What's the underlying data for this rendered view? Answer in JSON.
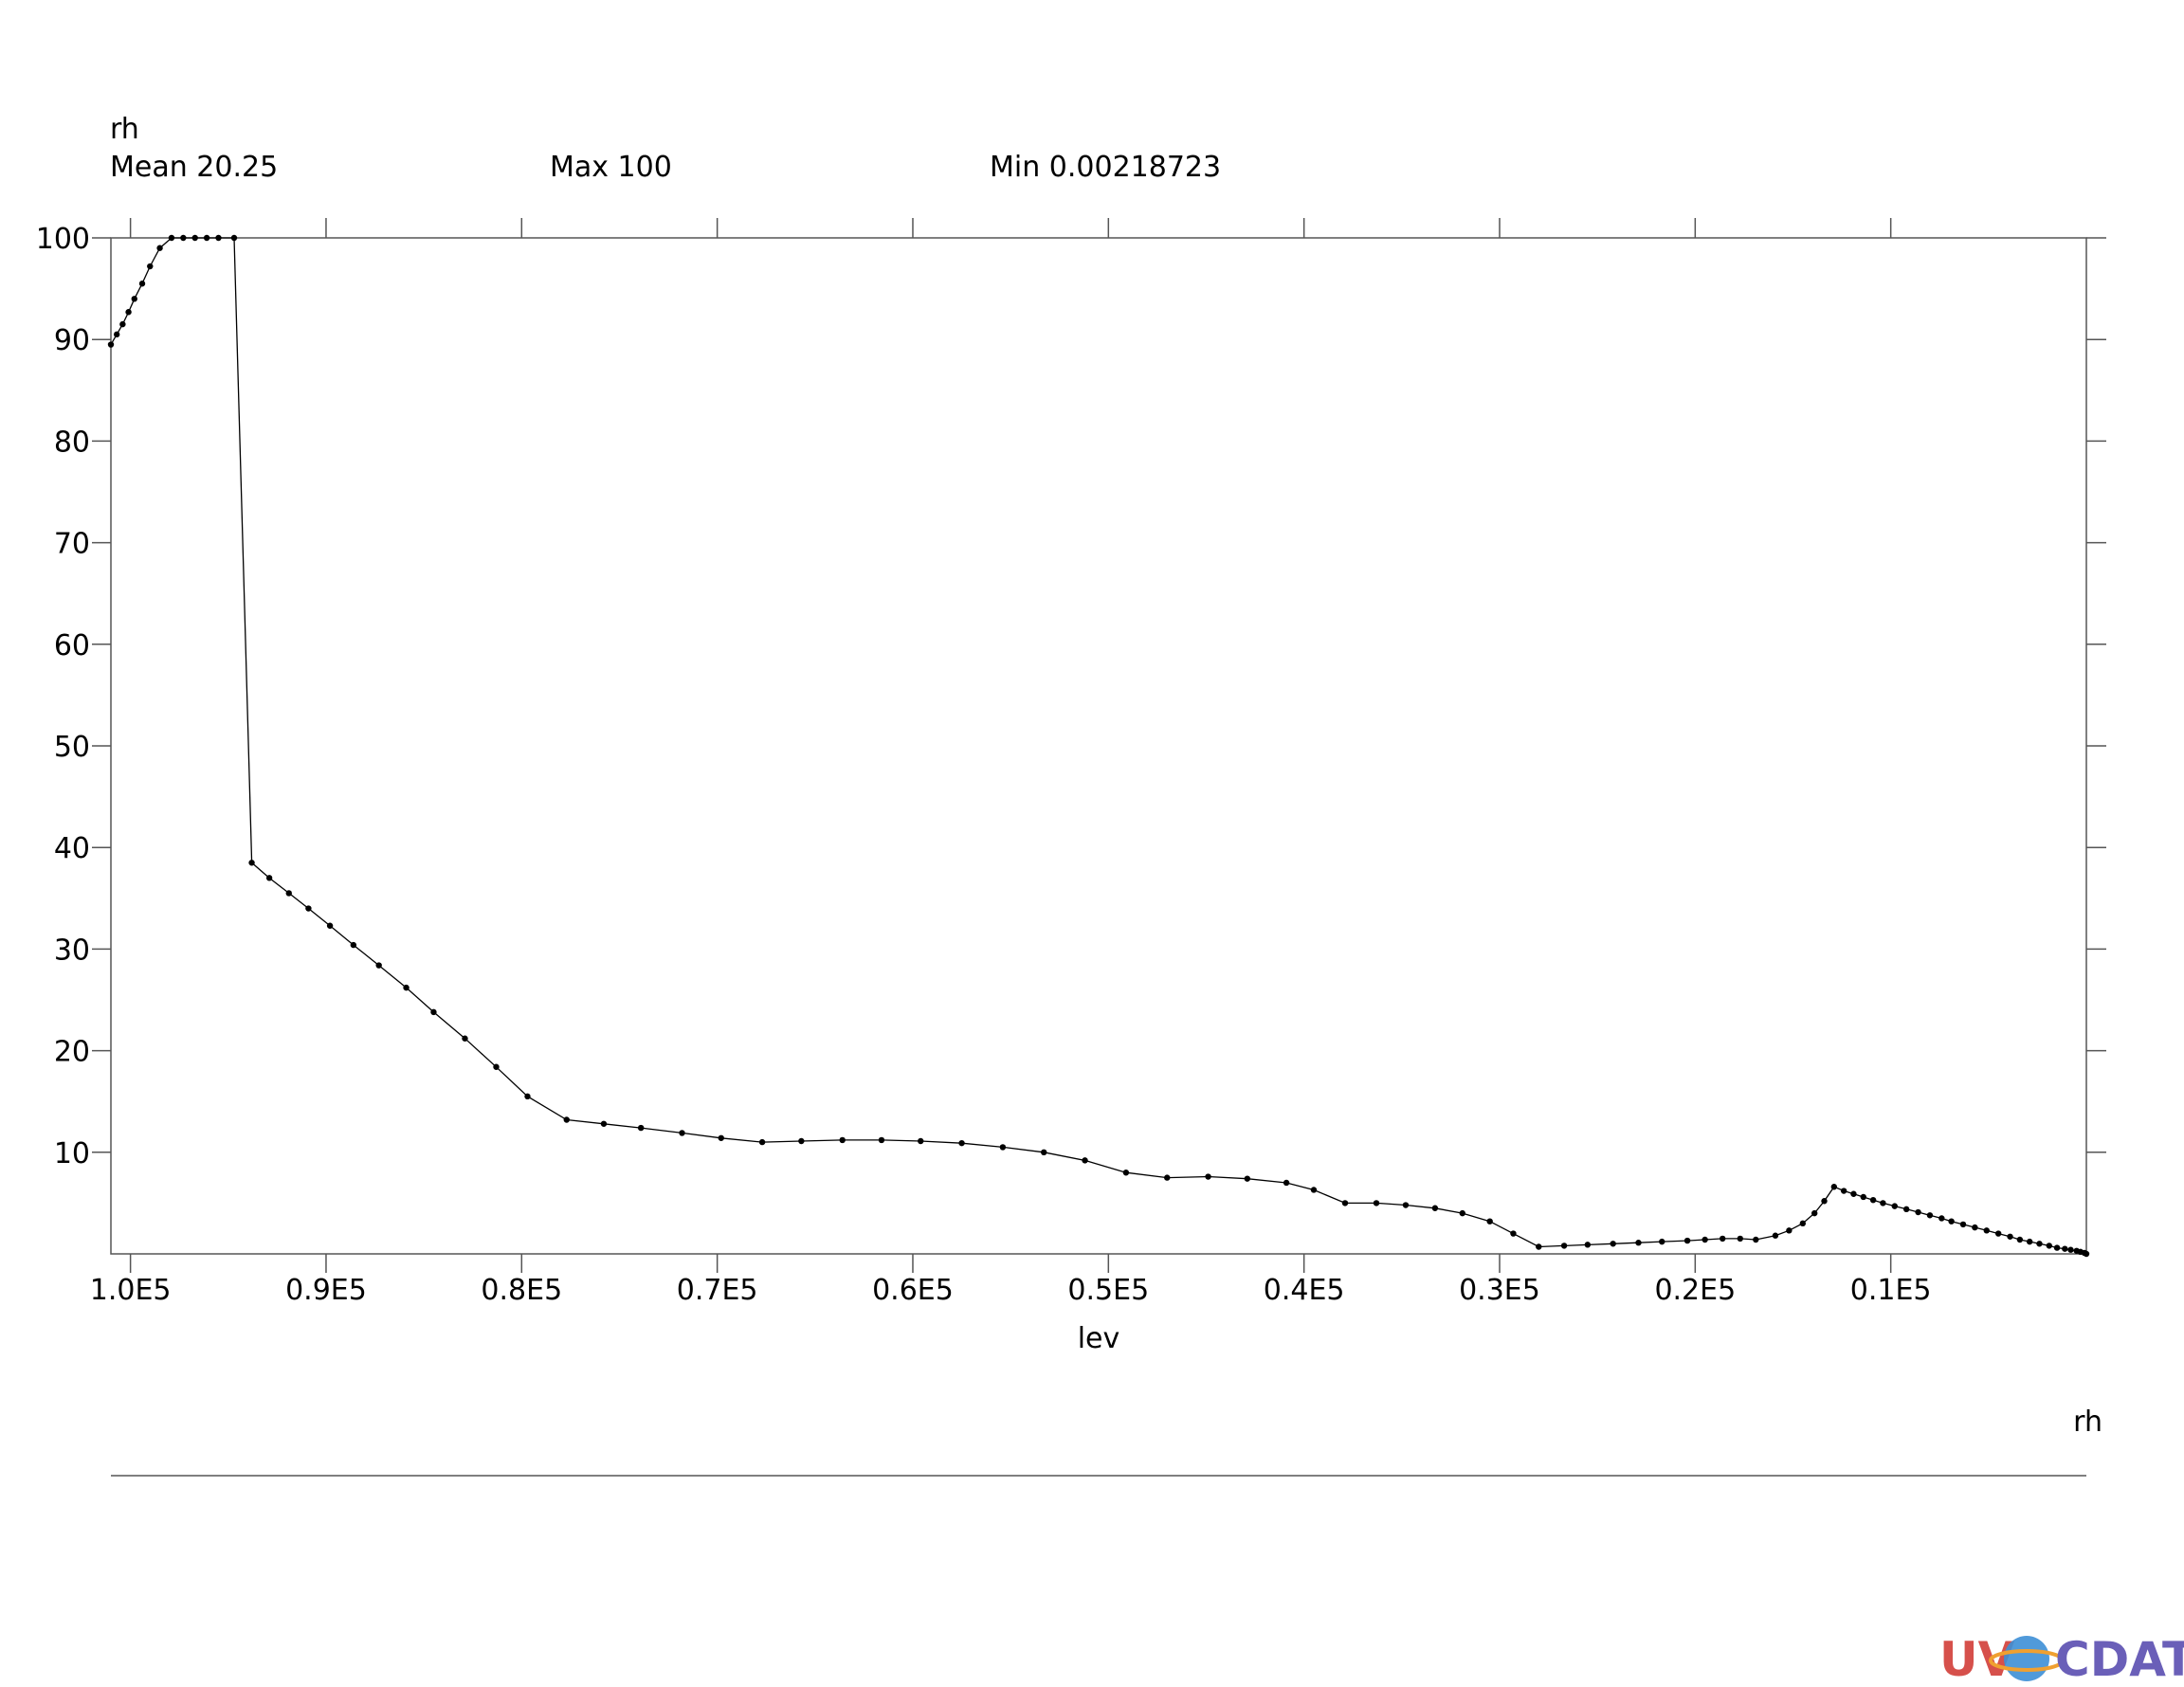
{
  "header": {
    "variable": "rh",
    "mean_label": "Mean 20.25",
    "max_label": "Max 100",
    "min_label": "Min 0.00218723"
  },
  "legend": {
    "label": "rh"
  },
  "logo": {
    "text_left": "UV",
    "text_right": "CDAT",
    "colors": [
      "#d6504b",
      "#3d8fd6",
      "#f0a030",
      "#6a5fb8"
    ]
  },
  "chart_data": {
    "type": "line",
    "title": "",
    "xlabel": "lev",
    "ylabel": "",
    "x_axis_reversed": true,
    "xlim": [
      101000,
      0
    ],
    "ylim": [
      0,
      100
    ],
    "x_ticks": [
      {
        "value": 100000,
        "label": "1.0E5"
      },
      {
        "value": 90000,
        "label": "0.9E5"
      },
      {
        "value": 80000,
        "label": "0.8E5"
      },
      {
        "value": 70000,
        "label": "0.7E5"
      },
      {
        "value": 60000,
        "label": "0.6E5"
      },
      {
        "value": 50000,
        "label": "0.5E5"
      },
      {
        "value": 40000,
        "label": "0.4E5"
      },
      {
        "value": 30000,
        "label": "0.3E5"
      },
      {
        "value": 20000,
        "label": "0.2E5"
      },
      {
        "value": 10000,
        "label": "0.1E5"
      }
    ],
    "y_ticks": [
      {
        "value": 100,
        "label": "100"
      },
      {
        "value": 90,
        "label": "90"
      },
      {
        "value": 80,
        "label": "80"
      },
      {
        "value": 70,
        "label": "70"
      },
      {
        "value": 60,
        "label": "60"
      },
      {
        "value": 50,
        "label": "50"
      },
      {
        "value": 40,
        "label": "40"
      },
      {
        "value": 30,
        "label": "30"
      },
      {
        "value": 20,
        "label": "20"
      },
      {
        "value": 10,
        "label": "10"
      }
    ],
    "grid": false,
    "series": [
      {
        "x": [
          101000,
          100700,
          100400,
          100100,
          99800,
          99400,
          99000,
          98500,
          97900,
          97300,
          96700,
          96100,
          95500,
          94700,
          93800,
          92900,
          91900,
          90900,
          89800,
          88600,
          87300,
          85900,
          84500,
          82900,
          81300,
          79700,
          77700,
          75800,
          73900,
          71800,
          69800,
          67700,
          65700,
          63600,
          61600,
          59600,
          57500,
          55400,
          53300,
          51200,
          49100,
          47000,
          44900,
          42900,
          40900,
          39500,
          37900,
          36300,
          34800,
          33300,
          31900,
          30500,
          29300,
          28000,
          26700,
          25500,
          24200,
          22900,
          21700,
          20400,
          19500,
          18600,
          17700,
          16900,
          15900,
          15200,
          14500,
          13900,
          13400,
          12900,
          12400,
          11900,
          11400,
          10900,
          10400,
          9800,
          9200,
          8600,
          8000,
          7400,
          6900,
          6300,
          5700,
          5100,
          4500,
          3900,
          3400,
          2900,
          2400,
          1900,
          1500,
          1100,
          800,
          500,
          300,
          100,
          0
        ],
        "y": [
          89.5,
          90.5,
          91.5,
          92.7,
          94.0,
          95.5,
          97.2,
          99.0,
          100,
          100,
          100,
          100,
          100,
          100,
          38.5,
          37.0,
          35.5,
          34.0,
          32.3,
          30.4,
          28.4,
          26.2,
          23.8,
          21.2,
          18.4,
          15.5,
          13.2,
          12.8,
          12.4,
          11.9,
          11.4,
          11.0,
          11.1,
          11.2,
          11.2,
          11.1,
          10.9,
          10.5,
          10.0,
          9.2,
          8.0,
          7.5,
          7.6,
          7.4,
          7.0,
          6.3,
          5.0,
          5.0,
          4.8,
          4.5,
          4.0,
          3.2,
          2.0,
          0.7,
          0.8,
          0.9,
          1.0,
          1.1,
          1.2,
          1.3,
          1.4,
          1.5,
          1.5,
          1.4,
          1.8,
          2.3,
          3.0,
          4.0,
          5.2,
          6.6,
          6.2,
          5.9,
          5.6,
          5.3,
          5.0,
          4.7,
          4.4,
          4.1,
          3.8,
          3.5,
          3.2,
          2.9,
          2.6,
          2.3,
          2.0,
          1.7,
          1.4,
          1.2,
          1.0,
          0.8,
          0.6,
          0.5,
          0.4,
          0.3,
          0.2,
          0.1,
          0.0
        ]
      }
    ]
  }
}
